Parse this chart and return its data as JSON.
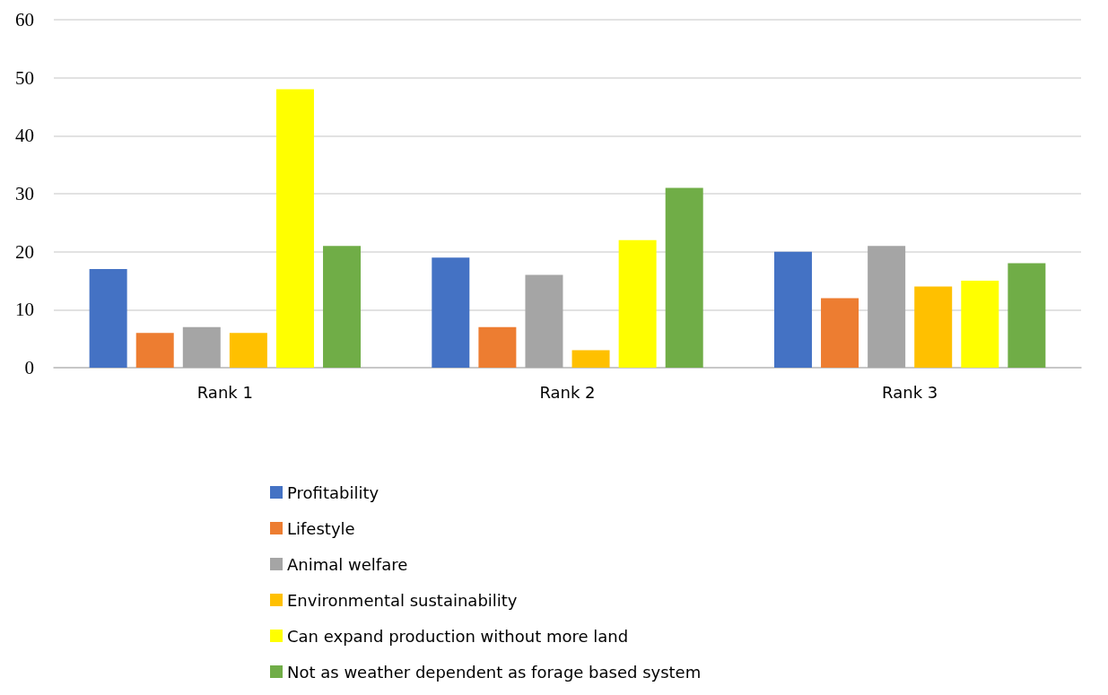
{
  "chart_data": {
    "type": "bar",
    "categories": [
      "Rank 1",
      "Rank 2",
      "Rank 3"
    ],
    "series": [
      {
        "name": "Profitability",
        "color": "#4472c4",
        "values": [
          17,
          19,
          20
        ]
      },
      {
        "name": "Lifestyle",
        "color": "#ed7d31",
        "values": [
          6,
          7,
          12
        ]
      },
      {
        "name": "Animal welfare",
        "color": "#a5a5a5",
        "values": [
          7,
          16,
          21
        ]
      },
      {
        "name": "Environmental sustainability",
        "color": "#ffc000",
        "values": [
          6,
          3,
          14
        ]
      },
      {
        "name": "Can expand production without more land",
        "color": "#ffff00",
        "values": [
          48,
          22,
          15
        ]
      },
      {
        "name": "Not as weather dependent as forage based system",
        "color": "#70ad47",
        "values": [
          21,
          31,
          18
        ]
      }
    ],
    "ylim": [
      0,
      60
    ],
    "yticks": [
      0,
      10,
      20,
      30,
      40,
      50,
      60
    ],
    "grid": "y",
    "legend": "bottom"
  }
}
